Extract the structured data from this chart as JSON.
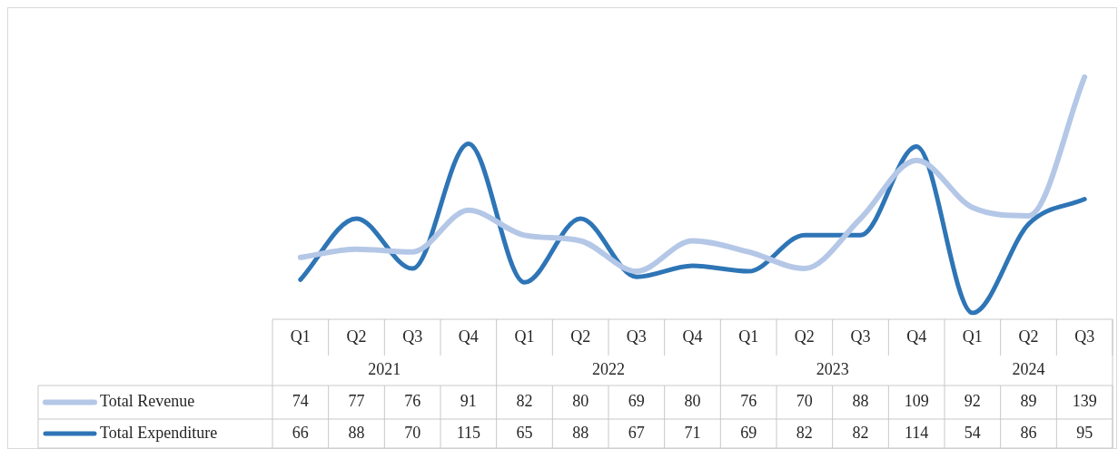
{
  "chart_data": {
    "type": "line",
    "categories": [
      "Q1",
      "Q2",
      "Q3",
      "Q4",
      "Q1",
      "Q2",
      "Q3",
      "Q4",
      "Q1",
      "Q2",
      "Q3",
      "Q4",
      "Q1",
      "Q2",
      "Q3"
    ],
    "annotations": [
      "2021",
      "2022",
      "2023",
      "2024"
    ],
    "series": [
      {
        "name": "Total Revenue",
        "color": "#b4c7e7",
        "values": [
          74,
          77,
          76,
          91,
          82,
          80,
          69,
          80,
          76,
          70,
          88,
          109,
          92,
          89,
          139
        ]
      },
      {
        "name": "Total Expenditure",
        "color": "#2e75b6",
        "values": [
          66,
          88,
          70,
          115,
          65,
          88,
          67,
          71,
          69,
          82,
          82,
          114,
          54,
          86,
          95
        ]
      }
    ],
    "data_labels": true,
    "legend": "bottom"
  }
}
